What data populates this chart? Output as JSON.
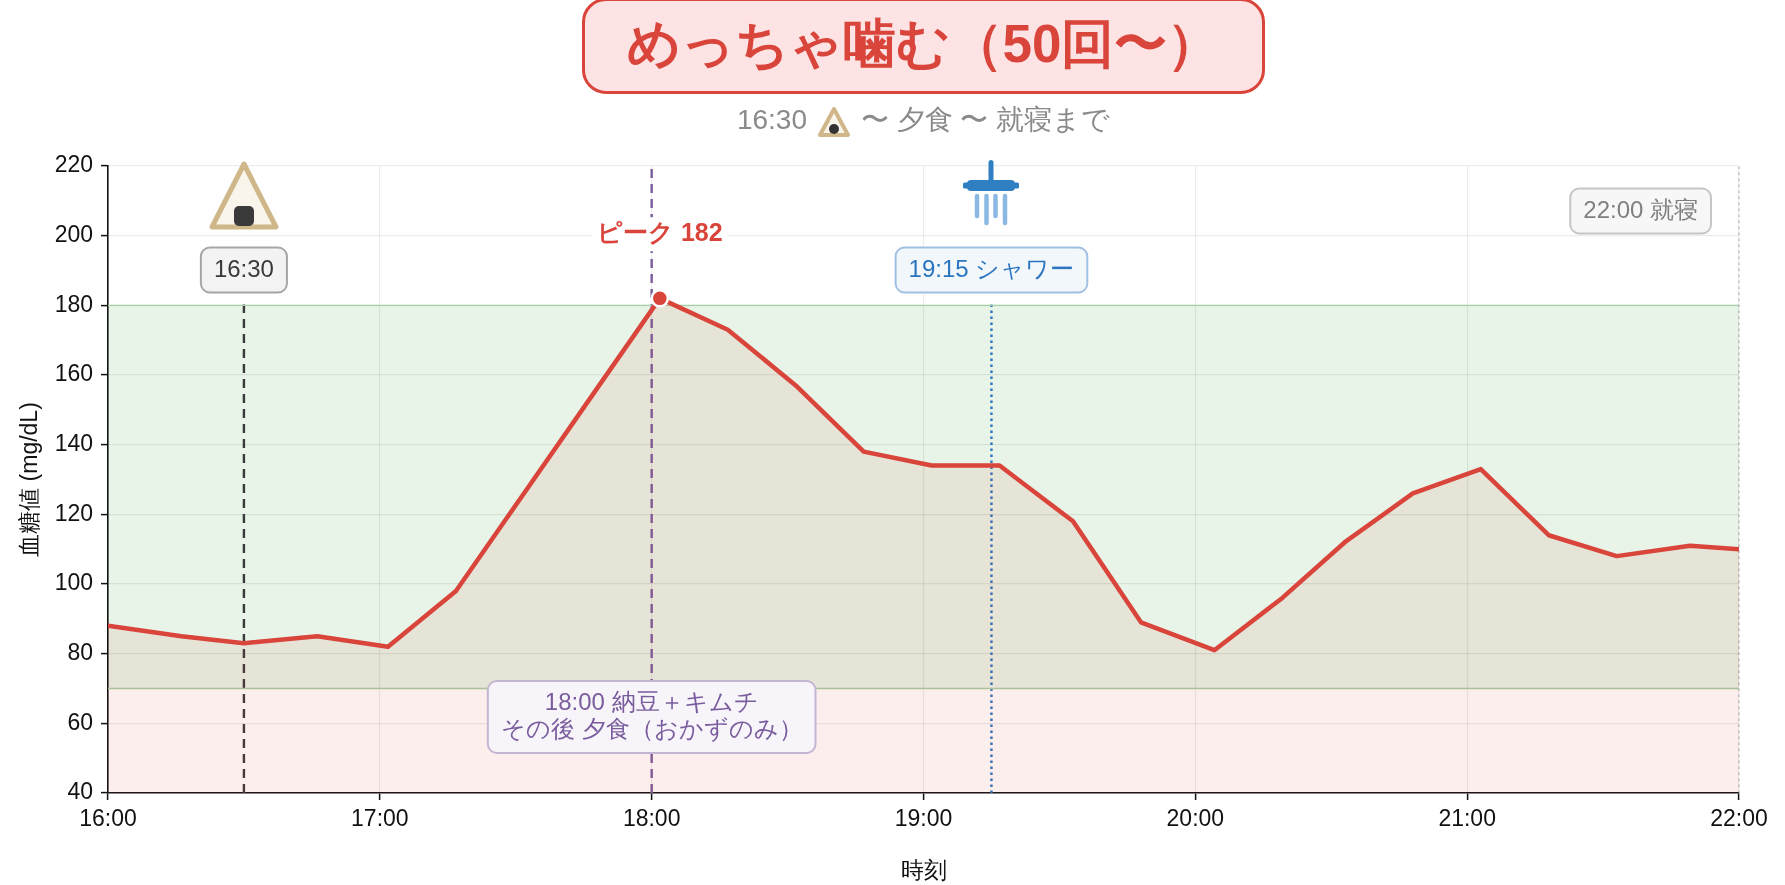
{
  "chart_data": {
    "type": "area",
    "title": "めっちゃ噛む（50回〜）",
    "subtitle": "16:30 〜 夕食 〜 就寝まで",
    "xlabel": "時刻",
    "ylabel": "血糖値 (mg/dL)",
    "x": [
      16.0,
      16.27,
      16.5,
      16.77,
      17.03,
      17.28,
      17.53,
      17.78,
      18.03,
      18.28,
      18.53,
      18.78,
      19.03,
      19.28,
      19.55,
      19.8,
      20.07,
      20.32,
      20.55,
      20.8,
      21.05,
      21.3,
      21.55,
      21.82,
      22.0
    ],
    "series": [
      {
        "color": "#d9443b",
        "values": [
          88,
          85,
          83,
          85,
          82,
          98,
          126,
          154,
          182,
          173,
          157,
          138,
          134,
          134,
          118,
          89,
          81,
          96,
          112,
          126,
          133,
          114,
          108,
          111,
          110
        ]
      },
      {
        "type": "scatter",
        "color": "#d9443b",
        "x": [
          18.03
        ],
        "values": [
          182
        ],
        "marker": "circle"
      }
    ],
    "xlim": [
      16,
      22
    ],
    "xticks": [
      {
        "value": 16,
        "label": "16:00"
      },
      {
        "value": 17,
        "label": "17:00"
      },
      {
        "value": 18,
        "label": "18:00"
      },
      {
        "value": 19,
        "label": "19:00"
      },
      {
        "value": 20,
        "label": "20:00"
      },
      {
        "value": 21,
        "label": "21:00"
      },
      {
        "value": 22,
        "label": "22:00"
      }
    ],
    "ylim": [
      40,
      220
    ],
    "yticks": [
      40,
      60,
      80,
      100,
      120,
      140,
      160,
      180,
      200,
      220
    ],
    "grid": true,
    "bands": [
      {
        "axis": "y",
        "from": 70,
        "to": 180,
        "color": "#e7f4e7"
      }
    ],
    "ref_lines": [
      {
        "axis": "x",
        "value": 16.5,
        "label": "16:30",
        "color": "#3a3a3a",
        "line_style": "dashed"
      },
      {
        "axis": "x",
        "value": 18,
        "label": "18:00 納豆＋キムチその後 夕食（おかずのみ）",
        "color": "#7a5c9e",
        "line_style": "dashed"
      },
      {
        "axis": "x",
        "value": 19.25,
        "label": "19:15 シャワー",
        "color": "#2b74c0",
        "line_style": "dotted"
      },
      {
        "axis": "x",
        "value": 22,
        "label": "22:00 就寝",
        "color": "#808080",
        "line_style": "dotted"
      },
      {
        "axis": "y",
        "value": 180,
        "color": "#a5cea5",
        "line_style": "solid"
      },
      {
        "axis": "y",
        "value": 70,
        "color": "#a5cea5",
        "line_style": "solid"
      }
    ],
    "annotations": [
      {
        "text": "ピーク 182",
        "x": 18.03,
        "y": 182
      }
    ]
  }
}
